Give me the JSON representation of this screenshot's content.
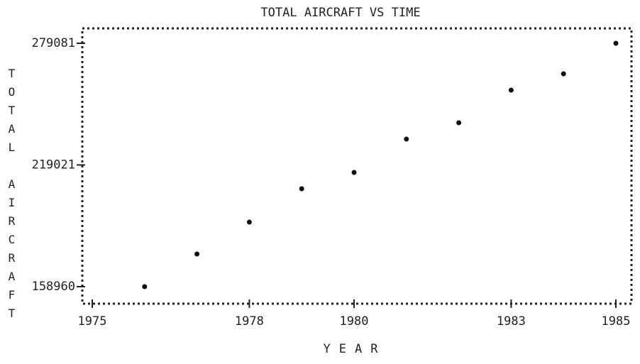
{
  "chart_data": {
    "type": "scatter",
    "title": "TOTAL AIRCRAFT VS TIME",
    "x_label": "YEAR",
    "y_label": "TOTAL AIRCRAFT",
    "x": [
      1976,
      1977,
      1978,
      1979,
      1980,
      1981,
      1982,
      1983,
      1984,
      1985
    ],
    "values": [
      158960,
      175067,
      190823,
      207279,
      215332,
      231789,
      239842,
      255949,
      264002,
      279081
    ],
    "xlim": [
      1975,
      1985
    ],
    "xticks": [
      1975,
      1978,
      1980,
      1983,
      1985
    ],
    "ylim": [
      158960,
      279081
    ],
    "yticks": [
      158960,
      219021,
      279081
    ]
  }
}
